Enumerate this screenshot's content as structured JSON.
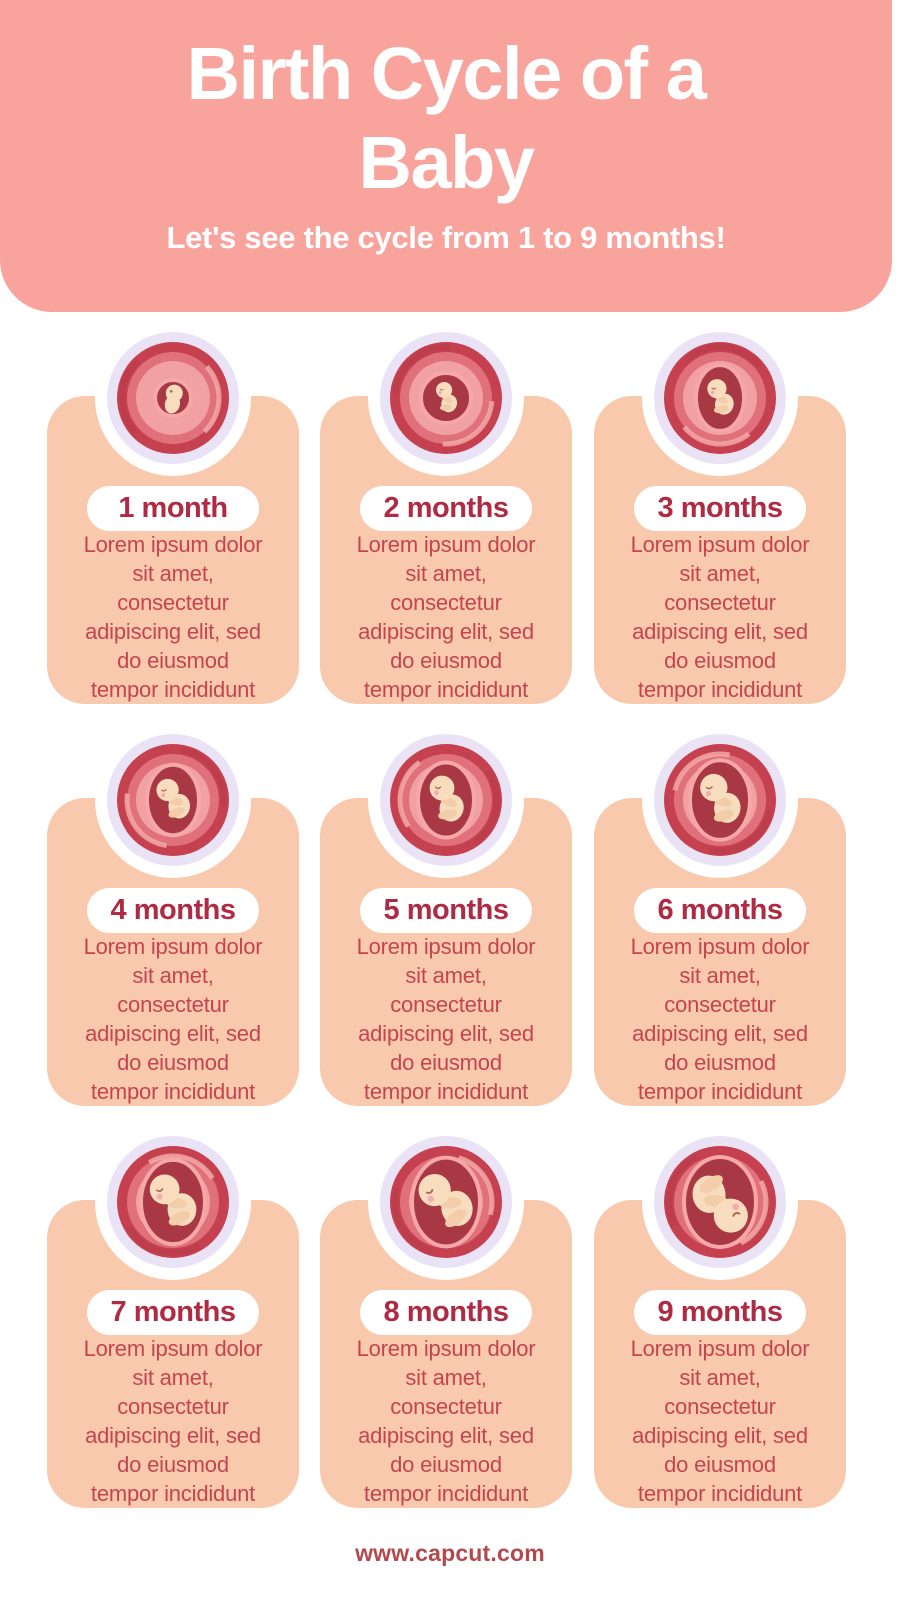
{
  "header": {
    "title": "Birth Cycle of a\nBaby",
    "subtitle": "Let's see the cycle from 1 to 9 months!"
  },
  "cards": [
    {
      "label": "1 month",
      "icon": "fetus-in-womb-icon",
      "description": "Lorem ipsum dolor\nsit amet,\nconsectetur\nadipiscing elit, sed\ndo eiusmod\ntempor incididunt"
    },
    {
      "label": "2 months",
      "icon": "fetus-in-womb-icon",
      "description": "Lorem ipsum dolor\nsit amet,\nconsectetur\nadipiscing elit, sed\ndo eiusmod\ntempor incididunt"
    },
    {
      "label": "3 months",
      "icon": "fetus-in-womb-icon",
      "description": "Lorem ipsum dolor\nsit amet,\nconsectetur\nadipiscing elit, sed\ndo eiusmod\ntempor incididunt"
    },
    {
      "label": "4 months",
      "icon": "fetus-in-womb-icon",
      "description": "Lorem ipsum dolor\nsit amet,\nconsectetur\nadipiscing elit, sed\ndo eiusmod\ntempor incididunt"
    },
    {
      "label": "5 months",
      "icon": "fetus-in-womb-icon",
      "description": "Lorem ipsum dolor\nsit amet,\nconsectetur\nadipiscing elit, sed\ndo eiusmod\ntempor incididunt"
    },
    {
      "label": "6 months",
      "icon": "fetus-in-womb-icon",
      "description": "Lorem ipsum dolor\nsit amet,\nconsectetur\nadipiscing elit, sed\ndo eiusmod\ntempor incididunt"
    },
    {
      "label": "7 months",
      "icon": "fetus-in-womb-icon",
      "description": "Lorem ipsum dolor\nsit amet,\nconsectetur\nadipiscing elit, sed\ndo eiusmod\ntempor incididunt"
    },
    {
      "label": "8 months",
      "icon": "fetus-in-womb-icon",
      "description": "Lorem ipsum dolor\nsit amet,\nconsectetur\nadipiscing elit, sed\ndo eiusmod\ntempor incididunt"
    },
    {
      "label": "9 months",
      "icon": "fetus-in-womb-icon",
      "description": "Lorem ipsum dolor\nsit amet,\nconsectetur\nadipiscing elit, sed\ndo eiusmod\ntempor incididunt"
    }
  ],
  "footer": {
    "website": "www.capcut.com"
  },
  "colors": {
    "header_bg": "#F9A39D",
    "card_bg": "#F9C9AE",
    "medallion_ring": "#EAE3F5",
    "pill_bg": "#FFFFFF",
    "pill_text": "#AF2B43",
    "body_text": "#C4454F",
    "footer_text": "#B4484C",
    "title_text": "#FFFFFF",
    "womb_outer": "#C5414F",
    "womb_mid": "#E0717B",
    "womb_light": "#F1A1A1",
    "womb_cavity": "#A73844",
    "cavity_rim": "#F6A7A7",
    "baby_skin": "#F8DCBE",
    "baby_cheek": "#F3AAB2"
  }
}
